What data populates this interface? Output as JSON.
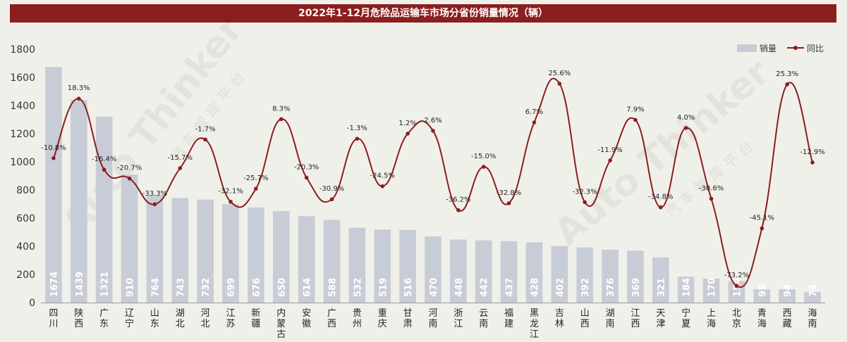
{
  "title": "2022年1-12月危险品运输车市场分省份销量情况（辆）",
  "legend": {
    "bar": "销量",
    "line": "同比"
  },
  "colors": {
    "bar": "#c8ccd6",
    "line": "#8b1e1e",
    "title_bg": "#8b1e1e",
    "background": "#f0f0ea"
  },
  "chart_data": {
    "type": "bar",
    "title": "2022年1-12月危险品运输车市场分省份销量情况（辆）",
    "categories": [
      "四川",
      "陕西",
      "广东",
      "辽宁",
      "山东",
      "湖北",
      "河北",
      "江苏",
      "新疆",
      "内蒙古",
      "安徽",
      "广西",
      "贵州",
      "重庆",
      "甘肃",
      "河南",
      "浙江",
      "云南",
      "福建",
      "黑龙江",
      "吉林",
      "山西",
      "湖南",
      "江西",
      "天津",
      "宁夏",
      "上海",
      "北京",
      "青海",
      "西藏",
      "海南"
    ],
    "series": [
      {
        "name": "销量",
        "type": "bar",
        "values": [
          1674,
          1439,
          1321,
          910,
          764,
          743,
          732,
          699,
          676,
          650,
          614,
          588,
          532,
          519,
          516,
          470,
          448,
          442,
          437,
          428,
          402,
          392,
          376,
          369,
          321,
          184,
          170,
          154,
          95,
          94,
          74
        ]
      },
      {
        "name": "同比",
        "type": "line",
        "labels": [
          "-10.8%",
          "18.3%",
          "-16.4%",
          "-20.7%",
          "-33.3%",
          "-15.7%",
          "-1.7%",
          "-32.1%",
          "-25.7%",
          "8.3%",
          "-20.3%",
          "-30.9%",
          "-1.3%",
          "-24.5%",
          "1.2%",
          "2.6%",
          "-36.2%",
          "-15.0%",
          "-32.8%",
          "6.7%",
          "25.6%",
          "-32.3%",
          "-11.9%",
          "7.9%",
          "-34.8%",
          "4.0%",
          "-30.6%",
          "-73.2%",
          "-45.1%",
          "25.3%",
          "-12.9%"
        ],
        "values": [
          -10.8,
          18.3,
          -16.4,
          -20.7,
          -33.3,
          -15.7,
          -1.7,
          -32.1,
          -25.7,
          8.3,
          -20.3,
          -30.9,
          -1.3,
          -24.5,
          1.2,
          2.6,
          -36.2,
          -15.0,
          -32.8,
          6.7,
          25.6,
          -32.3,
          -11.9,
          7.9,
          -34.8,
          4.0,
          -30.6,
          -73.2,
          -45.1,
          25.3,
          -12.9
        ]
      }
    ],
    "y_ticks": [
      "0",
      "200",
      "400",
      "600",
      "800",
      "1000",
      "1200",
      "1400",
      "1600",
      "1800"
    ],
    "ylim": [
      0,
      1800
    ],
    "grid": false,
    "legend_position": "top-right"
  },
  "watermark": [
    "Auto Thinker",
    "汽 车 智 库 平 台"
  ]
}
